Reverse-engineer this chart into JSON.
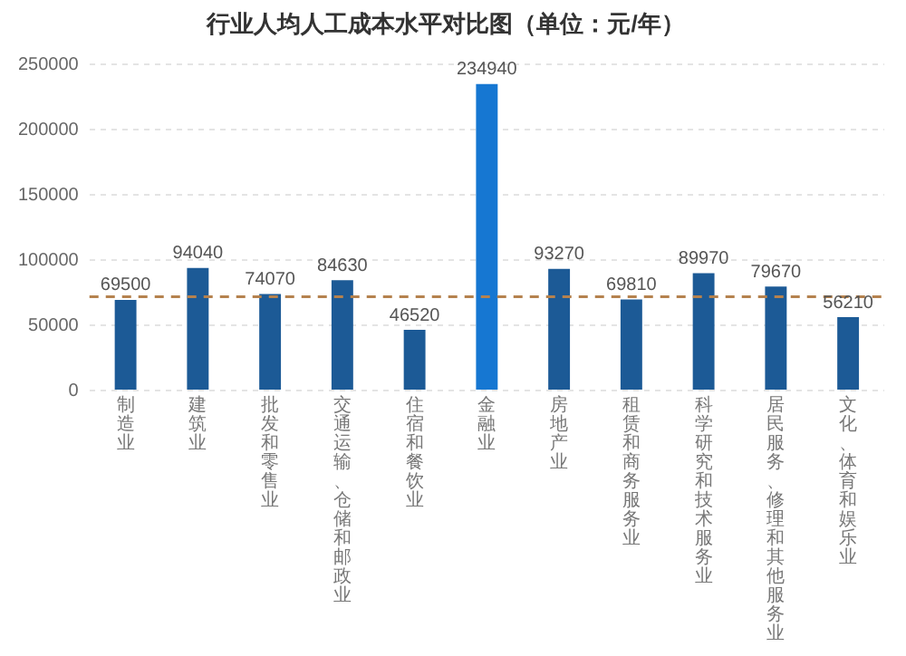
{
  "chart_data": {
    "type": "bar",
    "title": "行业人均人工成本水平对比图（单位：元/年）",
    "categories": [
      "制造业",
      "建筑业",
      "批发和零售业",
      "交通运输、仓储和邮政业",
      "住宿和餐饮业",
      "金融业",
      "房地产业",
      "租赁和商务服务业",
      "科学研究和技术服务业",
      "居民服务、修理和其他服务业",
      "文化、体育和娱乐业"
    ],
    "values": [
      69500,
      94040,
      74070,
      84630,
      46520,
      234940,
      93270,
      69810,
      89970,
      79670,
      56210
    ],
    "colors": [
      "#1c5a96",
      "#1c5a96",
      "#1c5a96",
      "#1c5a96",
      "#1c5a96",
      "#1677d2",
      "#1c5a96",
      "#1c5a96",
      "#1c5a96",
      "#1c5a96",
      "#1c5a96"
    ],
    "ylim": [
      0,
      250000
    ],
    "yticks": [
      0,
      50000,
      100000,
      150000,
      200000,
      250000
    ],
    "grid": "y",
    "data_labels": true,
    "ref_lines": [
      {
        "axis": "y",
        "value": 72000,
        "color": "#b5824e",
        "line_style": "dashed"
      }
    ]
  }
}
